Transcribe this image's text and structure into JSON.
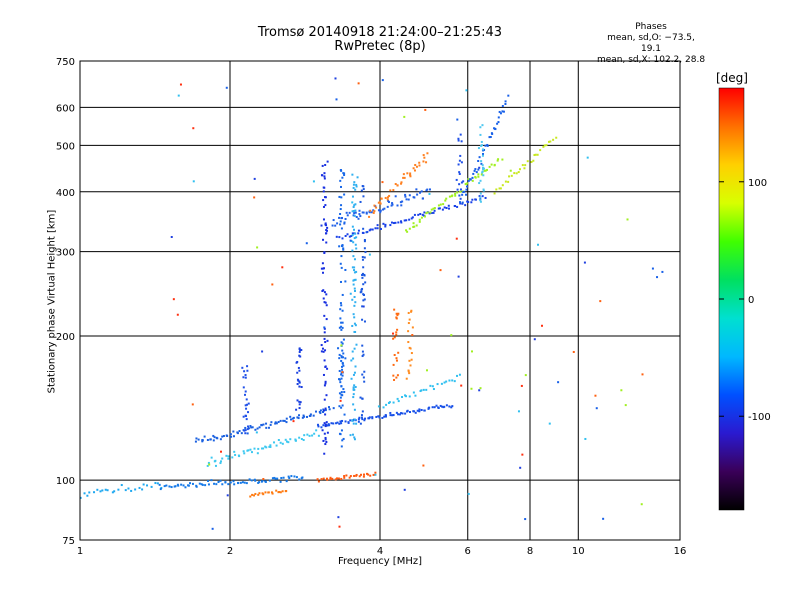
{
  "chart_data": {
    "type": "scatter",
    "title_line1": "Tromsø 20140918 21:24:00–21:25:43",
    "title_line2": "RwPretec (8p)",
    "xlabel": "Frequency [MHz]",
    "ylabel": "Stationary phase Virtual Height [km]",
    "x_scale": "log",
    "y_scale": "log",
    "xlim": [
      1,
      16
    ],
    "ylim": [
      75,
      750
    ],
    "x_ticks": [
      1,
      2,
      4,
      6,
      8,
      10,
      16
    ],
    "x_tick_labels": [
      "1",
      "2",
      "4",
      "6",
      "8",
      "10",
      "16"
    ],
    "y_ticks": [
      75,
      100,
      200,
      300,
      400,
      500,
      600,
      750
    ],
    "y_tick_labels": [
      "75",
      "100",
      "200",
      "300",
      "400",
      "500",
      "600",
      "750"
    ],
    "grid": true,
    "phase_stats": {
      "heading": "Phases",
      "line_o": "mean, sd,O: −73.5, 19.1",
      "line_x": "mean, sd,X: 102.2, 28.8"
    },
    "colorbar": {
      "unit_label": "[deg]",
      "range": [
        -180,
        180
      ],
      "tick_values": [
        100,
        0,
        -100
      ],
      "tick_labels": [
        "100",
        "0",
        "-100"
      ],
      "colors": [
        "#000000",
        "#3a0058",
        "#2a1ad0",
        "#0050ff",
        "#00b8ff",
        "#00e0d0",
        "#00e060",
        "#40ff00",
        "#d8ff00",
        "#ffd000",
        "#ff7000",
        "#ff0000"
      ]
    },
    "series": [
      {
        "traces": [
          {
            "f0": 1.0,
            "f1": 1.45,
            "h0": 94,
            "h1": 98,
            "n": 26,
            "c": "#1ea8f0",
            "sx": 0.012,
            "sy": 0.025
          },
          {
            "f0": 1.45,
            "f1": 2.8,
            "h0": 97,
            "h1": 101,
            "n": 70,
            "c": "#1478e8",
            "sx": 0.012,
            "sy": 0.02
          },
          {
            "f0": 1.7,
            "f1": 3.2,
            "h0": 120,
            "h1": 140,
            "n": 80,
            "c": "#1a60e0",
            "sx": 0.015,
            "sy": 0.025
          },
          {
            "f0": 1.8,
            "f1": 3.0,
            "h0": 108,
            "h1": 126,
            "n": 55,
            "c": "#3cc8f0",
            "sx": 0.015,
            "sy": 0.03
          },
          {
            "f0": 3.0,
            "f1": 5.6,
            "h0": 130,
            "h1": 143,
            "n": 80,
            "c": "#1850e8",
            "sx": 0.012,
            "sy": 0.015
          },
          {
            "f0": 4.0,
            "f1": 5.8,
            "h0": 142,
            "h1": 165,
            "n": 30,
            "c": "#30c0f0",
            "sx": 0.01,
            "sy": 0.02
          },
          {
            "f0": 3.0,
            "f1": 3.9,
            "h0": 100,
            "h1": 103,
            "n": 30,
            "c": "#ff5a10",
            "sx": 0.01,
            "sy": 0.012
          },
          {
            "f0": 2.2,
            "f1": 2.6,
            "h0": 93,
            "h1": 95,
            "n": 20,
            "c": "#ff7a10",
            "sx": 0.01,
            "sy": 0.01
          },
          {
            "f0": 3.3,
            "f1": 6.5,
            "h0": 320,
            "h1": 390,
            "n": 70,
            "c": "#1840e8",
            "sx": 0.012,
            "sy": 0.02
          },
          {
            "f0": 3.2,
            "f1": 5.0,
            "h0": 345,
            "h1": 400,
            "n": 60,
            "c": "#2060e8",
            "sx": 0.02,
            "sy": 0.04
          },
          {
            "f0": 4.5,
            "f1": 7.0,
            "h0": 330,
            "h1": 470,
            "n": 50,
            "c": "#a0f020",
            "sx": 0.015,
            "sy": 0.02
          },
          {
            "f0": 5.8,
            "f1": 7.2,
            "h0": 380,
            "h1": 620,
            "n": 45,
            "c": "#1860e8",
            "sx": 0.01,
            "sy": 0.03
          },
          {
            "f0": 6.8,
            "f1": 9.0,
            "h0": 400,
            "h1": 520,
            "n": 30,
            "c": "#c8e820",
            "sx": 0.01,
            "sy": 0.02
          },
          {
            "f0": 3.8,
            "f1": 5.0,
            "h0": 360,
            "h1": 480,
            "n": 40,
            "c": "#ff8020",
            "sx": 0.015,
            "sy": 0.04
          }
        ],
        "columns": [
          {
            "f": 2.15,
            "h0": 125,
            "h1": 175,
            "n": 25,
            "c": "#2050e8"
          },
          {
            "f": 2.75,
            "h0": 140,
            "h1": 190,
            "n": 25,
            "c": "#1a40e0"
          },
          {
            "f": 3.1,
            "h0": 110,
            "h1": 480,
            "n": 80,
            "c": "#1830e0"
          },
          {
            "f": 3.35,
            "h0": 110,
            "h1": 460,
            "n": 90,
            "c": "#1868e8"
          },
          {
            "f": 3.55,
            "h0": 120,
            "h1": 440,
            "n": 80,
            "c": "#30b0f0"
          },
          {
            "f": 3.7,
            "h0": 130,
            "h1": 420,
            "n": 50,
            "c": "#1c58e0"
          },
          {
            "f": 4.3,
            "h0": 150,
            "h1": 230,
            "n": 20,
            "c": "#ff6a10"
          },
          {
            "f": 4.6,
            "h0": 150,
            "h1": 230,
            "n": 18,
            "c": "#ff8c20"
          },
          {
            "f": 5.8,
            "h0": 380,
            "h1": 530,
            "n": 18,
            "c": "#2050e8"
          },
          {
            "f": 6.4,
            "h0": 360,
            "h1": 560,
            "n": 25,
            "c": "#50c8f0"
          }
        ]
      }
    ]
  }
}
